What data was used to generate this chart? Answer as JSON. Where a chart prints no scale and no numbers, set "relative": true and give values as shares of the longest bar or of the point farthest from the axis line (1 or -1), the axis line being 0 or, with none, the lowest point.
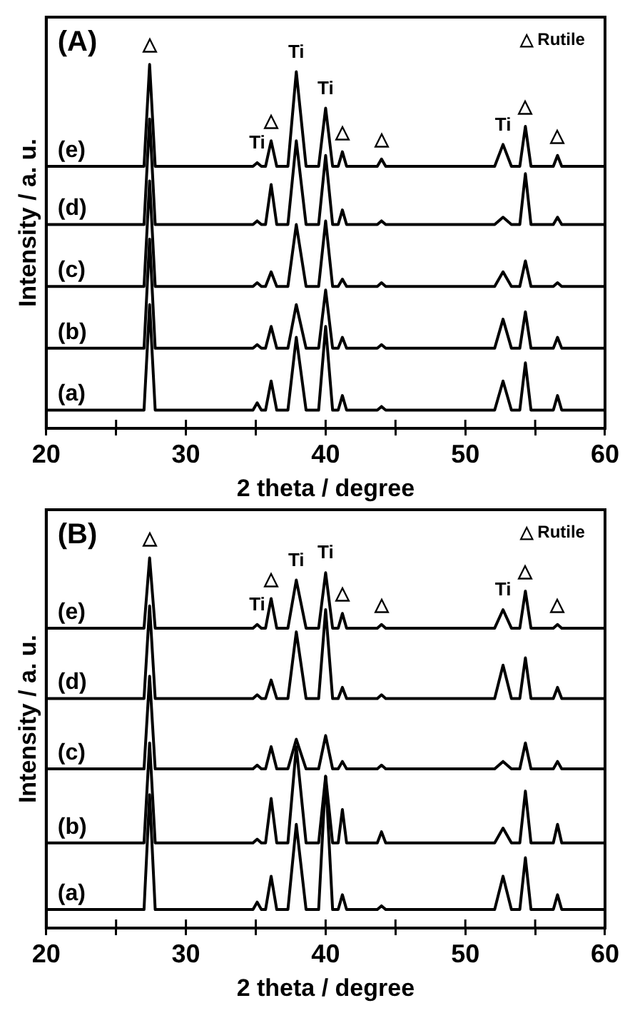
{
  "chart_data": [
    {
      "type": "line",
      "title": "(A)",
      "xlabel": "2 theta / degree",
      "ylabel": "Intensity / a. u.",
      "relative": true,
      "legend": false,
      "grid": false,
      "marker": "none",
      "line_style": "solid",
      "tick_labels": "x",
      "xlim": [
        20,
        60
      ],
      "xticks": [
        20,
        {
          "value": 25,
          "label": null
        },
        30,
        {
          "value": 35,
          "label": null
        },
        40,
        {
          "value": 45,
          "label": null
        },
        50,
        {
          "value": 55,
          "label": null
        },
        60
      ],
      "x": [
        20,
        27.0,
        27.4,
        27.8,
        34.8,
        35.1,
        35.4,
        35.7,
        36.1,
        36.5,
        37.3,
        37.9,
        38.6,
        39.5,
        40.0,
        40.5,
        40.9,
        41.2,
        41.5,
        43.7,
        44.0,
        44.3,
        52.1,
        52.7,
        53.3,
        53.9,
        54.3,
        54.7,
        56.3,
        56.6,
        56.9,
        60
      ],
      "series": [
        {
          "name": "(a)",
          "color": "#000000",
          "values": [
            0.05,
            0.05,
            0.34,
            0.05,
            0.05,
            0.07,
            0.05,
            0.05,
            0.13,
            0.05,
            0.05,
            0.25,
            0.05,
            0.05,
            0.28,
            0.05,
            0.05,
            0.09,
            0.05,
            0.05,
            0.06,
            0.05,
            0.05,
            0.13,
            0.05,
            0.05,
            0.18,
            0.05,
            0.05,
            0.09,
            0.05,
            0.05
          ]
        },
        {
          "name": "(b)",
          "color": "#000000",
          "values": [
            0.22,
            0.22,
            0.52,
            0.22,
            0.22,
            0.23,
            0.22,
            0.22,
            0.28,
            0.22,
            0.22,
            0.34,
            0.22,
            0.22,
            0.38,
            0.22,
            0.22,
            0.25,
            0.22,
            0.22,
            0.23,
            0.22,
            0.22,
            0.3,
            0.22,
            0.22,
            0.32,
            0.22,
            0.22,
            0.25,
            0.22,
            0.22
          ]
        },
        {
          "name": "(c)",
          "color": "#000000",
          "values": [
            0.39,
            0.39,
            0.68,
            0.39,
            0.39,
            0.4,
            0.39,
            0.39,
            0.43,
            0.39,
            0.39,
            0.56,
            0.39,
            0.39,
            0.57,
            0.39,
            0.39,
            0.41,
            0.39,
            0.39,
            0.4,
            0.39,
            0.39,
            0.43,
            0.39,
            0.39,
            0.46,
            0.39,
            0.39,
            0.4,
            0.39,
            0.39
          ]
        },
        {
          "name": "(d)",
          "color": "#000000",
          "values": [
            0.56,
            0.56,
            0.85,
            0.56,
            0.56,
            0.57,
            0.56,
            0.56,
            0.67,
            0.56,
            0.56,
            0.79,
            0.56,
            0.56,
            0.75,
            0.56,
            0.56,
            0.6,
            0.56,
            0.56,
            0.57,
            0.56,
            0.56,
            0.58,
            0.56,
            0.56,
            0.7,
            0.56,
            0.56,
            0.58,
            0.56,
            0.56
          ]
        },
        {
          "name": "(e)",
          "color": "#000000",
          "values": [
            0.72,
            0.72,
            1.0,
            0.72,
            0.72,
            0.73,
            0.72,
            0.72,
            0.79,
            0.72,
            0.72,
            0.98,
            0.72,
            0.72,
            0.88,
            0.72,
            0.72,
            0.76,
            0.72,
            0.72,
            0.74,
            0.72,
            0.72,
            0.78,
            0.72,
            0.72,
            0.83,
            0.72,
            0.72,
            0.75,
            0.72,
            0.72
          ]
        }
      ],
      "annotations": [
        "△ Rutile",
        {
          "text": "△",
          "x": 27.4,
          "y": 1.0
        },
        {
          "text": "Ti",
          "x": 35.1,
          "y": 0.73
        },
        {
          "text": "△",
          "x": 36.1,
          "y": 0.79
        },
        {
          "text": "Ti",
          "x": 37.9,
          "y": 0.98
        },
        {
          "text": "Ti",
          "x": 40.0,
          "y": 0.88
        },
        {
          "text": "△",
          "x": 41.2,
          "y": 0.76
        },
        {
          "text": "△",
          "x": 44.0,
          "y": 0.74
        },
        {
          "text": "Ti",
          "x": 52.7,
          "y": 0.78
        },
        {
          "text": "△",
          "x": 54.3,
          "y": 0.83
        },
        {
          "text": "△",
          "x": 56.6,
          "y": 0.75
        }
      ]
    },
    {
      "type": "line",
      "title": "(B)",
      "xlabel": "2 theta / degree",
      "ylabel": "Intensity / a. u.",
      "relative": true,
      "legend": false,
      "grid": false,
      "marker": "none",
      "line_style": "solid",
      "tick_labels": "x",
      "xlim": [
        20,
        60
      ],
      "xticks": [
        20,
        {
          "value": 25,
          "label": null
        },
        30,
        {
          "value": 35,
          "label": null
        },
        40,
        {
          "value": 45,
          "label": null
        },
        50,
        {
          "value": 55,
          "label": null
        },
        60
      ],
      "x": [
        20,
        27.0,
        27.4,
        27.8,
        34.8,
        35.1,
        35.4,
        35.7,
        36.1,
        36.5,
        37.3,
        37.9,
        38.6,
        39.5,
        40.0,
        40.5,
        40.9,
        41.2,
        41.5,
        43.7,
        44.0,
        44.3,
        52.1,
        52.7,
        53.3,
        53.9,
        54.3,
        54.7,
        56.3,
        56.6,
        56.9,
        60
      ],
      "series": [
        {
          "name": "(a)",
          "color": "#000000",
          "values": [
            0.05,
            0.05,
            0.36,
            0.05,
            0.05,
            0.07,
            0.05,
            0.05,
            0.14,
            0.05,
            0.05,
            0.28,
            0.05,
            0.05,
            0.41,
            0.05,
            0.05,
            0.09,
            0.05,
            0.05,
            0.06,
            0.05,
            0.05,
            0.14,
            0.05,
            0.05,
            0.19,
            0.05,
            0.05,
            0.09,
            0.05,
            0.05
          ]
        },
        {
          "name": "(b)",
          "color": "#000000",
          "values": [
            0.23,
            0.23,
            0.5,
            0.23,
            0.23,
            0.24,
            0.23,
            0.23,
            0.35,
            0.23,
            0.23,
            0.49,
            0.23,
            0.23,
            0.41,
            0.23,
            0.23,
            0.32,
            0.23,
            0.23,
            0.26,
            0.23,
            0.23,
            0.27,
            0.23,
            0.23,
            0.37,
            0.23,
            0.23,
            0.28,
            0.23,
            0.23
          ]
        },
        {
          "name": "(c)",
          "color": "#000000",
          "values": [
            0.43,
            0.43,
            0.68,
            0.43,
            0.43,
            0.44,
            0.43,
            0.43,
            0.49,
            0.43,
            0.43,
            0.51,
            0.43,
            0.43,
            0.52,
            0.43,
            0.43,
            0.45,
            0.43,
            0.43,
            0.44,
            0.43,
            0.43,
            0.45,
            0.43,
            0.43,
            0.5,
            0.43,
            0.43,
            0.45,
            0.43,
            0.43
          ]
        },
        {
          "name": "(d)",
          "color": "#000000",
          "values": [
            0.62,
            0.62,
            0.87,
            0.62,
            0.62,
            0.63,
            0.62,
            0.62,
            0.67,
            0.62,
            0.62,
            0.8,
            0.62,
            0.62,
            0.86,
            0.62,
            0.62,
            0.65,
            0.62,
            0.62,
            0.63,
            0.62,
            0.62,
            0.71,
            0.62,
            0.62,
            0.73,
            0.62,
            0.62,
            0.65,
            0.62,
            0.62
          ]
        },
        {
          "name": "(e)",
          "color": "#000000",
          "values": [
            0.81,
            0.81,
            1.0,
            0.81,
            0.81,
            0.82,
            0.81,
            0.81,
            0.89,
            0.81,
            0.81,
            0.94,
            0.81,
            0.81,
            0.96,
            0.81,
            0.81,
            0.85,
            0.81,
            0.81,
            0.82,
            0.81,
            0.81,
            0.86,
            0.81,
            0.81,
            0.91,
            0.81,
            0.81,
            0.82,
            0.81,
            0.81
          ]
        }
      ],
      "annotations": [
        "△ Rutile",
        {
          "text": "△",
          "x": 27.4,
          "y": 1.0
        },
        {
          "text": "Ti",
          "x": 35.1,
          "y": 0.82
        },
        {
          "text": "△",
          "x": 36.1,
          "y": 0.89
        },
        {
          "text": "Ti",
          "x": 37.9,
          "y": 0.94
        },
        {
          "text": "Ti",
          "x": 40.0,
          "y": 0.96
        },
        {
          "text": "△",
          "x": 41.2,
          "y": 0.85
        },
        {
          "text": "△",
          "x": 44.0,
          "y": 0.82
        },
        {
          "text": "Ti",
          "x": 52.7,
          "y": 0.86
        },
        {
          "text": "△",
          "x": 54.3,
          "y": 0.91
        },
        {
          "text": "△",
          "x": 56.6,
          "y": 0.82
        }
      ]
    }
  ]
}
